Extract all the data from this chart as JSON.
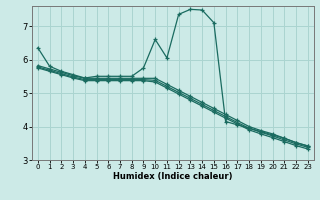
{
  "xlabel": "Humidex (Indice chaleur)",
  "bg_color": "#cceae7",
  "grid_color": "#aad4d0",
  "line_color": "#1a6b60",
  "xlim": [
    -0.5,
    23.5
  ],
  "ylim": [
    3.0,
    7.6
  ],
  "xticks": [
    0,
    1,
    2,
    3,
    4,
    5,
    6,
    7,
    8,
    9,
    10,
    11,
    12,
    13,
    14,
    15,
    16,
    17,
    18,
    19,
    20,
    21,
    22,
    23
  ],
  "yticks": [
    3,
    4,
    5,
    6,
    7
  ],
  "line1_x": [
    0,
    1,
    2,
    3,
    4,
    5,
    6,
    7,
    8,
    9,
    10,
    11,
    12,
    13,
    14,
    15,
    16,
    17,
    18,
    19,
    20,
    21,
    22,
    23
  ],
  "line1_y": [
    6.35,
    5.8,
    5.65,
    5.55,
    5.45,
    5.5,
    5.5,
    5.5,
    5.5,
    5.75,
    6.6,
    6.05,
    7.35,
    7.5,
    7.48,
    7.1,
    4.15,
    4.05,
    3.95,
    3.85,
    3.75,
    3.65,
    3.52,
    3.42
  ],
  "line2_x": [
    0,
    1,
    2,
    3,
    4,
    5,
    6,
    7,
    8,
    9,
    10,
    11,
    12,
    13,
    14,
    15,
    16,
    17,
    18,
    19,
    20,
    21,
    22,
    23
  ],
  "line2_y": [
    5.82,
    5.72,
    5.62,
    5.52,
    5.44,
    5.44,
    5.44,
    5.44,
    5.44,
    5.44,
    5.44,
    5.26,
    5.08,
    4.9,
    4.72,
    4.54,
    4.36,
    4.18,
    4.0,
    3.88,
    3.78,
    3.65,
    3.52,
    3.42
  ],
  "line3_x": [
    0,
    1,
    2,
    3,
    4,
    5,
    6,
    7,
    8,
    9,
    10,
    11,
    12,
    13,
    14,
    15,
    16,
    17,
    18,
    19,
    20,
    21,
    22,
    23
  ],
  "line3_y": [
    5.78,
    5.68,
    5.58,
    5.48,
    5.4,
    5.4,
    5.4,
    5.4,
    5.4,
    5.4,
    5.38,
    5.2,
    5.02,
    4.84,
    4.66,
    4.48,
    4.3,
    4.12,
    3.95,
    3.83,
    3.72,
    3.6,
    3.48,
    3.38
  ],
  "line4_x": [
    0,
    1,
    2,
    3,
    4,
    5,
    6,
    7,
    8,
    9,
    10,
    11,
    12,
    13,
    14,
    15,
    16,
    17,
    18,
    19,
    20,
    21,
    22,
    23
  ],
  "line4_y": [
    5.75,
    5.65,
    5.55,
    5.45,
    5.37,
    5.37,
    5.37,
    5.37,
    5.37,
    5.37,
    5.33,
    5.15,
    4.97,
    4.79,
    4.61,
    4.43,
    4.25,
    4.08,
    3.9,
    3.78,
    3.67,
    3.55,
    3.43,
    3.33
  ]
}
